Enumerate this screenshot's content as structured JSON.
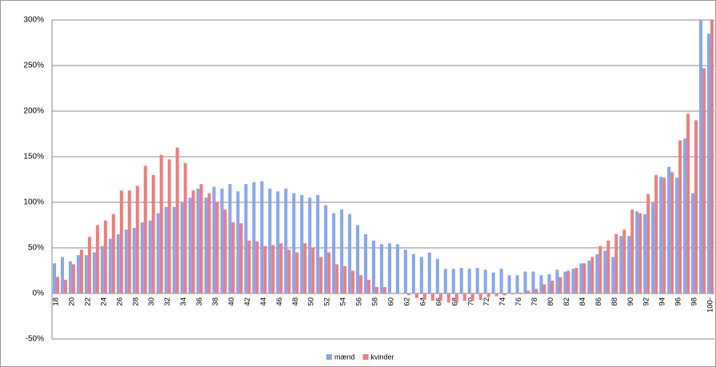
{
  "chart_data": {
    "type": "bar",
    "categories": [
      "18",
      null,
      "20",
      null,
      "22",
      null,
      "24",
      null,
      "26",
      null,
      "28",
      null,
      "30",
      null,
      "32",
      null,
      "34",
      null,
      "36",
      null,
      "38",
      null,
      "40",
      null,
      "42",
      null,
      "44",
      null,
      "46",
      null,
      "48",
      null,
      "50",
      null,
      "52",
      null,
      "54",
      null,
      "56",
      null,
      "58",
      null,
      "60",
      null,
      "62",
      null,
      "64",
      null,
      "66",
      null,
      "68",
      null,
      "70",
      null,
      "72",
      null,
      "74",
      null,
      "76",
      null,
      "78",
      null,
      "80",
      null,
      "82",
      null,
      "84",
      null,
      "86",
      null,
      "88",
      null,
      "90",
      null,
      "92",
      null,
      "94",
      null,
      "96",
      null,
      "98",
      null,
      "100-"
    ],
    "series": [
      {
        "name": "mænd",
        "color": "#86a6ee",
        "values": [
          33,
          40,
          35,
          42,
          42,
          45,
          52,
          60,
          65,
          70,
          72,
          78,
          80,
          88,
          95,
          95,
          100,
          105,
          115,
          105,
          117,
          115,
          120,
          112,
          120,
          122,
          123,
          115,
          112,
          115,
          110,
          108,
          105,
          108,
          97,
          88,
          92,
          87,
          75,
          65,
          58,
          54,
          55,
          54,
          48,
          43,
          40,
          45,
          38,
          27,
          27,
          28,
          27,
          28,
          26,
          23,
          27,
          20,
          20,
          24,
          24,
          20,
          21,
          26,
          24,
          27,
          33,
          36,
          43,
          47,
          40,
          63,
          63,
          90,
          87,
          100,
          128,
          139,
          127,
          170,
          110,
          300,
          285
        ]
      },
      {
        "name": "kvinder",
        "color": "#f07c7c",
        "values": [
          18,
          15,
          32,
          48,
          62,
          75,
          80,
          87,
          113,
          113,
          118,
          140,
          130,
          152,
          147,
          160,
          143,
          113,
          120,
          110,
          100,
          92,
          78,
          77,
          58,
          57,
          52,
          53,
          55,
          48,
          45,
          55,
          50,
          40,
          45,
          32,
          30,
          25,
          20,
          15,
          7,
          7,
          0,
          0,
          -2,
          -5,
          -7,
          -8,
          -8,
          -10,
          -10,
          -8,
          -8,
          -7,
          -4,
          -3,
          -2,
          -1,
          1,
          3,
          5,
          10,
          14,
          18,
          25,
          28,
          33,
          40,
          52,
          58,
          65,
          70,
          92,
          88,
          109,
          130,
          127,
          133,
          168,
          197,
          190,
          247,
          300
        ]
      }
    ],
    "ylim": [
      -50,
      300
    ],
    "yticks": [
      {
        "value": -50,
        "label": "-50%"
      },
      {
        "value": 0,
        "label": "0%"
      },
      {
        "value": 50,
        "label": "50%"
      },
      {
        "value": 100,
        "label": "100%"
      },
      {
        "value": 150,
        "label": "150%"
      },
      {
        "value": 200,
        "label": "200%"
      },
      {
        "value": 250,
        "label": "250%"
      },
      {
        "value": 300,
        "label": "300%"
      }
    ],
    "grid": true,
    "legend": "bottom"
  }
}
